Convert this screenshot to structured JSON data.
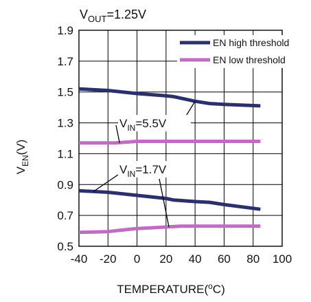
{
  "chart_data": {
    "type": "line",
    "title": {
      "main": "V",
      "sub": "OUT",
      "rest": "=1.25V"
    },
    "xlabel": {
      "main": "TEMPERATURE(",
      "sup": "o",
      "rest": "C)"
    },
    "ylabel": {
      "main": "V",
      "sub": "EN",
      "rest": "(V)"
    },
    "xlim": [
      -40,
      100
    ],
    "ylim": [
      0.5,
      1.9
    ],
    "xticks": [
      "-40",
      "-20",
      "0",
      "20",
      "40",
      "60",
      "80",
      "100"
    ],
    "yticks": [
      "0.5",
      "0.7",
      "0.9",
      "1.1",
      "1.3",
      "1.5",
      "1.7",
      "1.9"
    ],
    "grid": true,
    "legend_position": "top-right",
    "series": [
      {
        "name": "EN high threshold",
        "color": "#2b2f6b",
        "group": "vin55",
        "x": [
          -40,
          -20,
          0,
          20,
          25,
          40,
          50,
          60,
          85
        ],
        "y": [
          1.52,
          1.51,
          1.49,
          1.475,
          1.47,
          1.44,
          1.425,
          1.42,
          1.41
        ]
      },
      {
        "name": "EN low threshold",
        "color": "#c06cc3",
        "group": "vin55",
        "x": [
          -40,
          -20,
          -15,
          0,
          20,
          40,
          60,
          85
        ],
        "y": [
          1.17,
          1.17,
          1.17,
          1.18,
          1.18,
          1.18,
          1.18,
          1.18
        ]
      },
      {
        "name": "",
        "color": "#2b2f6b",
        "group": "vin17",
        "x": [
          -40,
          -20,
          0,
          20,
          25,
          40,
          50,
          60,
          85
        ],
        "y": [
          0.86,
          0.85,
          0.83,
          0.81,
          0.8,
          0.79,
          0.785,
          0.77,
          0.74
        ]
      },
      {
        "name": "",
        "color": "#c06cc3",
        "group": "vin17",
        "x": [
          -40,
          -20,
          -10,
          0,
          10,
          20,
          30,
          60,
          85
        ],
        "y": [
          0.59,
          0.595,
          0.605,
          0.615,
          0.62,
          0.625,
          0.63,
          0.63,
          0.63
        ]
      }
    ],
    "annotations": [
      {
        "main": "V",
        "sub": "IN",
        "rest": "=5.5V",
        "group": "vin55"
      },
      {
        "main": "V",
        "sub": "IN",
        "rest": "=1.7V",
        "group": "vin17"
      }
    ]
  }
}
